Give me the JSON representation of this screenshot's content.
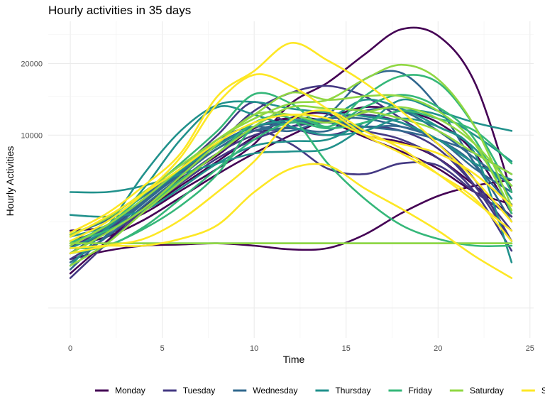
{
  "chart_data": {
    "type": "line",
    "title": "Hourly activities in 35 days",
    "xlabel": "Time",
    "ylabel": "Hourly Activities",
    "xlim": [
      -1.2,
      25.2
    ],
    "ylim": [
      -300,
      27500
    ],
    "y_scale": "sqrt",
    "x_ticks": [
      0,
      5,
      10,
      15,
      20,
      25
    ],
    "x_tick_labels": [
      "0",
      "5",
      "10",
      "15",
      "20",
      "25"
    ],
    "y_ticks": [
      10000,
      20000
    ],
    "y_tick_labels": [
      "10000",
      "20000"
    ],
    "grid": true,
    "legend_position": "bottom",
    "legend": [
      {
        "day": "Monday",
        "color": "#440154"
      },
      {
        "day": "Tuesday",
        "color": "#443983"
      },
      {
        "day": "Wednesday",
        "color": "#31688e"
      },
      {
        "day": "Thursday",
        "color": "#21918c"
      },
      {
        "day": "Friday",
        "color": "#35b779"
      },
      {
        "day": "Saturday",
        "color": "#90d743"
      },
      {
        "day": "Sunday",
        "color": "#fde725"
      }
    ],
    "x": [
      0,
      2,
      4,
      6,
      8,
      10,
      12,
      14,
      16,
      18,
      20,
      22,
      24
    ],
    "series": [
      {
        "day": "Monday",
        "values": [
          1300,
          1700,
          2600,
          4100,
          6000,
          8000,
          10000,
          12000,
          13500,
          13000,
          11500,
          8000,
          3000
        ]
      },
      {
        "day": "Monday",
        "values": [
          400,
          1500,
          3400,
          5600,
          7800,
          10800,
          12100,
          11600,
          9800,
          8200,
          6500,
          4500,
          3600
        ]
      },
      {
        "day": "Monday",
        "values": [
          2000,
          2200,
          3000,
          4600,
          6500,
          9000,
          14000,
          17000,
          21500,
          26000,
          24800,
          17000,
          4500
        ]
      },
      {
        "day": "Monday",
        "values": [
          800,
          1100,
          1300,
          1350,
          1400,
          1300,
          1150,
          1200,
          1800,
          3000,
          4200,
          5000,
          5500
        ]
      },
      {
        "day": "Monday",
        "values": [
          1500,
          2100,
          3200,
          5000,
          7200,
          9800,
          12100,
          12600,
          10000,
          9200,
          7500,
          5000,
          2800
        ]
      },
      {
        "day": "Tuesday",
        "values": [
          300,
          1400,
          3200,
          5500,
          8000,
          10000,
          11000,
          11500,
          10500,
          9500,
          7500,
          4500,
          1100
        ]
      },
      {
        "day": "Tuesday",
        "values": [
          1000,
          2000,
          3800,
          6000,
          9000,
          13000,
          15500,
          16500,
          15000,
          12000,
          9000,
          5500,
          1500
        ]
      },
      {
        "day": "Tuesday",
        "values": [
          1200,
          2200,
          3800,
          6000,
          8500,
          10500,
          9000,
          6500,
          6000,
          7000,
          6800,
          4500,
          2800
        ]
      },
      {
        "day": "Tuesday",
        "values": [
          800,
          1700,
          3200,
          5200,
          7500,
          9500,
          11000,
          12000,
          12500,
          11500,
          9000,
          5000,
          1500
        ]
      },
      {
        "day": "Tuesday",
        "values": [
          1000,
          2100,
          4000,
          6500,
          10000,
          14200,
          11000,
          10000,
          11000,
          10500,
          8500,
          5000,
          2000
        ]
      },
      {
        "day": "Wednesday",
        "values": [
          500,
          1800,
          3700,
          6000,
          8500,
          10500,
          11500,
          12000,
          12000,
          11000,
          9500,
          6500,
          4500
        ]
      },
      {
        "day": "Wednesday",
        "values": [
          1000,
          2100,
          3800,
          6200,
          9000,
          10500,
          10800,
          10500,
          13000,
          13000,
          10500,
          7500,
          5000
        ]
      },
      {
        "day": "Wednesday",
        "values": [
          1800,
          2600,
          4200,
          6500,
          9000,
          11000,
          11500,
          11800,
          11000,
          10500,
          9500,
          8000,
          6000
        ]
      },
      {
        "day": "Wednesday",
        "values": [
          700,
          1700,
          3500,
          5800,
          8500,
          10500,
          11500,
          11500,
          11000,
          11000,
          9500,
          6800,
          2500
        ]
      },
      {
        "day": "Wednesday",
        "values": [
          1400,
          2200,
          3900,
          6200,
          9500,
          11000,
          10500,
          12500,
          17500,
          18500,
          13500,
          7000,
          3500
        ]
      },
      {
        "day": "Thursday",
        "values": [
          4500,
          4500,
          5000,
          6000,
          7000,
          8000,
          8200,
          8500,
          11000,
          14500,
          13000,
          11500,
          10500
        ]
      },
      {
        "day": "Thursday",
        "values": [
          1200,
          2100,
          4800,
          9500,
          13500,
          12500,
          11000,
          10000,
          10500,
          12000,
          11000,
          8500,
          4000
        ]
      },
      {
        "day": "Thursday",
        "values": [
          2900,
          2800,
          3200,
          4800,
          7000,
          8800,
          9300,
          9500,
          11500,
          13000,
          12500,
          10000,
          7200
        ]
      },
      {
        "day": "Thursday",
        "values": [
          600,
          2200,
          6000,
          10500,
          13800,
          14200,
          13300,
          12800,
          12300,
          11500,
          9500,
          7000,
          5500
        ]
      },
      {
        "day": "Thursday",
        "values": [
          1700,
          2300,
          4000,
          6300,
          8800,
          11000,
          11800,
          12000,
          14500,
          13300,
          11000,
          8000,
          700
        ]
      },
      {
        "day": "Friday",
        "values": [
          1200,
          1300,
          2200,
          4000,
          6500,
          9500,
          11500,
          10800,
          11500,
          13000,
          12000,
          10500,
          7000
        ]
      },
      {
        "day": "Friday",
        "values": [
          1500,
          2000,
          3300,
          5500,
          8000,
          11500,
          12500,
          11000,
          13500,
          15200,
          13500,
          9500,
          3000
        ]
      },
      {
        "day": "Friday",
        "values": [
          1400,
          2300,
          4300,
          7000,
          10500,
          15300,
          14000,
          11000,
          15000,
          18000,
          17000,
          11000,
          4500
        ]
      },
      {
        "day": "Friday",
        "values": [
          1400,
          1400,
          1400,
          1400,
          1400,
          1400,
          1400,
          1400,
          1400,
          1400,
          1400,
          1400,
          1400
        ]
      },
      {
        "day": "Friday",
        "values": [
          1000,
          1300,
          2100,
          3500,
          6000,
          11000,
          12000,
          7000,
          4000,
          2300,
          1600,
          1300,
          1300
        ]
      },
      {
        "day": "Saturday",
        "values": [
          1300,
          2300,
          4000,
          6500,
          9500,
          12000,
          14000,
          14500,
          17500,
          19800,
          17500,
          11000,
          3500
        ]
      },
      {
        "day": "Saturday",
        "values": [
          600,
          1400,
          3100,
          5300,
          8000,
          11000,
          13500,
          13300,
          13000,
          12000,
          10500,
          8000,
          6000
        ]
      },
      {
        "day": "Saturday",
        "values": [
          1400,
          1400,
          1400,
          1400,
          1400,
          1400,
          1400,
          1400,
          1400,
          1400,
          1400,
          1400,
          1400
        ]
      },
      {
        "day": "Saturday",
        "values": [
          1800,
          2700,
          4500,
          6800,
          9500,
          12500,
          15500,
          14500,
          15000,
          15000,
          13000,
          9000,
          3200
        ]
      },
      {
        "day": "Saturday",
        "values": [
          1000,
          1900,
          3300,
          5800,
          9000,
          12500,
          12500,
          11500,
          12800,
          13500,
          12000,
          9000,
          5000
        ]
      },
      {
        "day": "Sunday",
        "values": [
          1000,
          1300,
          1600,
          2600,
          4500,
          7200,
          11800,
          13000,
          10500,
          8500,
          6000,
          3800,
          2000
        ]
      },
      {
        "day": "Sunday",
        "values": [
          1200,
          1300,
          1300,
          1600,
          2300,
          4500,
          6500,
          6800,
          4800,
          3300,
          2000,
          900,
          300
        ]
      },
      {
        "day": "Sunday",
        "values": [
          1500,
          2500,
          4400,
          7600,
          14000,
          18200,
          16500,
          13200,
          10000,
          8000,
          6000,
          4000,
          1500
        ]
      },
      {
        "day": "Sunday",
        "values": [
          1900,
          3000,
          5000,
          8000,
          15000,
          18800,
          23500,
          20500,
          17000,
          13000,
          9000,
          5500,
          2500
        ]
      },
      {
        "day": "Sunday",
        "values": [
          1700,
          2800,
          4400,
          6500,
          9200,
          11500,
          12500,
          12000,
          10000,
          9000,
          8000,
          6000,
          3500
        ]
      }
    ]
  }
}
